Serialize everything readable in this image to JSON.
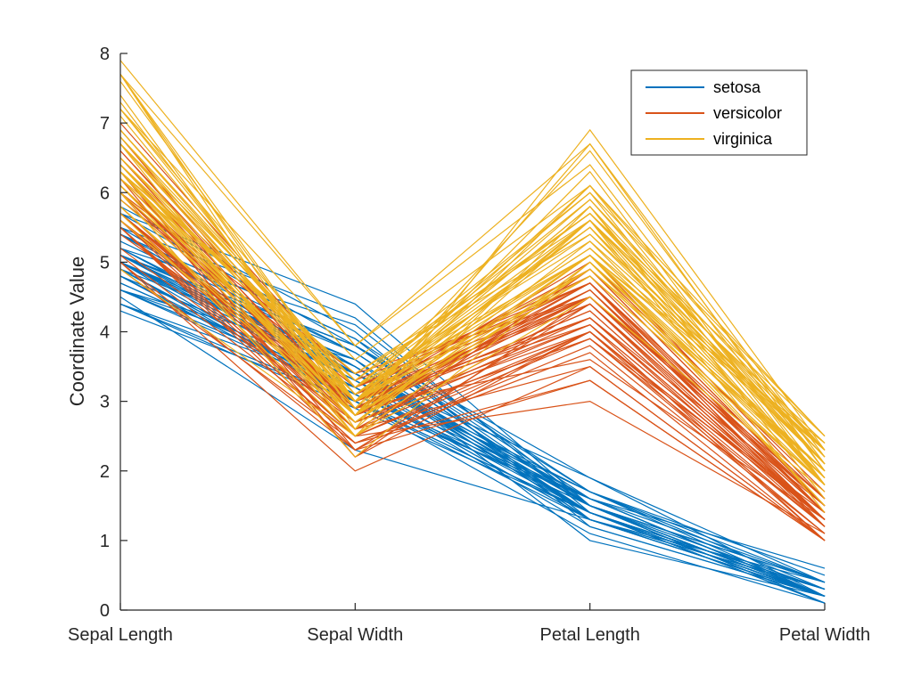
{
  "chart_data": {
    "type": "line",
    "title": "",
    "xlabel": "",
    "ylabel": "Coordinate Value",
    "categories": [
      "Sepal Length",
      "Sepal Width",
      "Petal Length",
      "Petal Width"
    ],
    "ylim": [
      0,
      8
    ],
    "yticks": [
      "0",
      "1",
      "2",
      "3",
      "4",
      "5",
      "6",
      "7",
      "8"
    ],
    "grid": false,
    "legend_position": "top-right",
    "legend": [
      "setosa",
      "versicolor",
      "virginica"
    ],
    "colors": {
      "setosa": "#0072BD",
      "versicolor": "#D95319",
      "virginica": "#EDB120"
    },
    "series": [
      {
        "name": "setosa",
        "lines": [
          [
            5.1,
            3.5,
            1.4,
            0.2
          ],
          [
            4.9,
            3.0,
            1.4,
            0.2
          ],
          [
            4.7,
            3.2,
            1.3,
            0.2
          ],
          [
            4.6,
            3.1,
            1.5,
            0.2
          ],
          [
            5.0,
            3.6,
            1.4,
            0.2
          ],
          [
            5.4,
            3.9,
            1.7,
            0.4
          ],
          [
            4.6,
            3.4,
            1.4,
            0.3
          ],
          [
            5.0,
            3.4,
            1.5,
            0.2
          ],
          [
            4.4,
            2.9,
            1.4,
            0.2
          ],
          [
            4.9,
            3.1,
            1.5,
            0.1
          ],
          [
            5.4,
            3.7,
            1.5,
            0.2
          ],
          [
            4.8,
            3.4,
            1.6,
            0.2
          ],
          [
            4.8,
            3.0,
            1.4,
            0.1
          ],
          [
            4.3,
            3.0,
            1.1,
            0.1
          ],
          [
            5.8,
            4.0,
            1.2,
            0.2
          ],
          [
            5.7,
            4.4,
            1.5,
            0.4
          ],
          [
            5.4,
            3.9,
            1.3,
            0.4
          ],
          [
            5.1,
            3.5,
            1.4,
            0.3
          ],
          [
            5.7,
            3.8,
            1.7,
            0.3
          ],
          [
            5.1,
            3.8,
            1.5,
            0.3
          ],
          [
            5.4,
            3.4,
            1.7,
            0.2
          ],
          [
            5.1,
            3.7,
            1.5,
            0.4
          ],
          [
            4.6,
            3.6,
            1.0,
            0.2
          ],
          [
            5.1,
            3.3,
            1.7,
            0.5
          ],
          [
            4.8,
            3.4,
            1.9,
            0.2
          ],
          [
            5.0,
            3.0,
            1.6,
            0.2
          ],
          [
            5.0,
            3.4,
            1.6,
            0.4
          ],
          [
            5.2,
            3.5,
            1.5,
            0.2
          ],
          [
            5.2,
            3.4,
            1.4,
            0.2
          ],
          [
            4.7,
            3.2,
            1.6,
            0.2
          ],
          [
            4.8,
            3.1,
            1.6,
            0.2
          ],
          [
            5.4,
            3.4,
            1.5,
            0.4
          ],
          [
            5.2,
            4.1,
            1.5,
            0.1
          ],
          [
            5.5,
            4.2,
            1.4,
            0.2
          ],
          [
            4.9,
            3.1,
            1.5,
            0.2
          ],
          [
            5.0,
            3.2,
            1.2,
            0.2
          ],
          [
            5.5,
            3.5,
            1.3,
            0.2
          ],
          [
            4.9,
            3.6,
            1.4,
            0.1
          ],
          [
            4.4,
            3.0,
            1.3,
            0.2
          ],
          [
            5.1,
            3.4,
            1.5,
            0.2
          ],
          [
            5.0,
            3.5,
            1.3,
            0.3
          ],
          [
            4.5,
            2.3,
            1.3,
            0.3
          ],
          [
            4.4,
            3.2,
            1.3,
            0.2
          ],
          [
            5.0,
            3.5,
            1.6,
            0.6
          ],
          [
            5.1,
            3.8,
            1.9,
            0.4
          ],
          [
            4.8,
            3.0,
            1.4,
            0.3
          ],
          [
            5.1,
            3.8,
            1.6,
            0.2
          ],
          [
            4.6,
            3.2,
            1.4,
            0.2
          ],
          [
            5.3,
            3.7,
            1.5,
            0.2
          ],
          [
            5.0,
            3.3,
            1.4,
            0.2
          ]
        ]
      },
      {
        "name": "versicolor",
        "lines": [
          [
            7.0,
            3.2,
            4.7,
            1.4
          ],
          [
            6.4,
            3.2,
            4.5,
            1.5
          ],
          [
            6.9,
            3.1,
            4.9,
            1.5
          ],
          [
            5.5,
            2.3,
            4.0,
            1.3
          ],
          [
            6.5,
            2.8,
            4.6,
            1.5
          ],
          [
            5.7,
            2.8,
            4.5,
            1.3
          ],
          [
            6.3,
            3.3,
            4.7,
            1.6
          ],
          [
            4.9,
            2.4,
            3.3,
            1.0
          ],
          [
            6.6,
            2.9,
            4.6,
            1.3
          ],
          [
            5.2,
            2.7,
            3.9,
            1.4
          ],
          [
            5.0,
            2.0,
            3.5,
            1.0
          ],
          [
            5.9,
            3.0,
            4.2,
            1.5
          ],
          [
            6.0,
            2.2,
            4.0,
            1.0
          ],
          [
            6.1,
            2.9,
            4.7,
            1.4
          ],
          [
            5.6,
            2.9,
            3.6,
            1.3
          ],
          [
            6.7,
            3.1,
            4.4,
            1.4
          ],
          [
            5.6,
            3.0,
            4.5,
            1.5
          ],
          [
            5.8,
            2.7,
            4.1,
            1.0
          ],
          [
            6.2,
            2.2,
            4.5,
            1.5
          ],
          [
            5.6,
            2.5,
            3.9,
            1.1
          ],
          [
            5.9,
            3.2,
            4.8,
            1.8
          ],
          [
            6.1,
            2.8,
            4.0,
            1.3
          ],
          [
            6.3,
            2.5,
            4.9,
            1.5
          ],
          [
            6.1,
            2.8,
            4.7,
            1.2
          ],
          [
            6.4,
            2.9,
            4.3,
            1.3
          ],
          [
            6.6,
            3.0,
            4.4,
            1.4
          ],
          [
            6.8,
            2.8,
            4.8,
            1.4
          ],
          [
            6.7,
            3.0,
            5.0,
            1.7
          ],
          [
            6.0,
            2.9,
            4.5,
            1.5
          ],
          [
            5.7,
            2.6,
            3.5,
            1.0
          ],
          [
            5.5,
            2.4,
            3.8,
            1.1
          ],
          [
            5.5,
            2.4,
            3.7,
            1.0
          ],
          [
            5.8,
            2.7,
            3.9,
            1.2
          ],
          [
            6.0,
            2.7,
            5.1,
            1.6
          ],
          [
            5.4,
            3.0,
            4.5,
            1.5
          ],
          [
            6.0,
            3.4,
            4.5,
            1.6
          ],
          [
            6.7,
            3.1,
            4.7,
            1.5
          ],
          [
            6.3,
            2.3,
            4.4,
            1.3
          ],
          [
            5.6,
            3.0,
            4.1,
            1.3
          ],
          [
            5.5,
            2.5,
            4.0,
            1.3
          ],
          [
            5.5,
            2.6,
            4.4,
            1.2
          ],
          [
            6.1,
            3.0,
            4.6,
            1.4
          ],
          [
            5.8,
            2.6,
            4.0,
            1.2
          ],
          [
            5.0,
            2.3,
            3.3,
            1.0
          ],
          [
            5.6,
            2.7,
            4.2,
            1.3
          ],
          [
            5.7,
            3.0,
            4.2,
            1.2
          ],
          [
            5.7,
            2.9,
            4.2,
            1.3
          ],
          [
            6.2,
            2.9,
            4.3,
            1.3
          ],
          [
            5.1,
            2.5,
            3.0,
            1.1
          ],
          [
            5.7,
            2.8,
            4.1,
            1.3
          ]
        ]
      },
      {
        "name": "virginica",
        "lines": [
          [
            6.3,
            3.3,
            6.0,
            2.5
          ],
          [
            5.8,
            2.7,
            5.1,
            1.9
          ],
          [
            7.1,
            3.0,
            5.9,
            2.1
          ],
          [
            6.3,
            2.9,
            5.6,
            1.8
          ],
          [
            6.5,
            3.0,
            5.8,
            2.2
          ],
          [
            7.6,
            3.0,
            6.6,
            2.1
          ],
          [
            4.9,
            2.5,
            4.5,
            1.7
          ],
          [
            7.3,
            2.9,
            6.3,
            1.8
          ],
          [
            6.7,
            2.5,
            5.8,
            1.8
          ],
          [
            7.2,
            3.6,
            6.1,
            2.5
          ],
          [
            6.5,
            3.2,
            5.1,
            2.0
          ],
          [
            6.4,
            2.7,
            5.3,
            1.9
          ],
          [
            6.8,
            3.0,
            5.5,
            2.1
          ],
          [
            5.7,
            2.5,
            5.0,
            2.0
          ],
          [
            5.8,
            2.8,
            5.1,
            2.4
          ],
          [
            6.4,
            3.2,
            5.3,
            2.3
          ],
          [
            6.5,
            3.0,
            5.5,
            1.8
          ],
          [
            7.7,
            3.8,
            6.7,
            2.2
          ],
          [
            7.7,
            2.6,
            6.9,
            2.3
          ],
          [
            6.0,
            2.2,
            5.0,
            1.5
          ],
          [
            6.9,
            3.2,
            5.7,
            2.3
          ],
          [
            5.6,
            2.8,
            4.9,
            2.0
          ],
          [
            7.7,
            2.8,
            6.7,
            2.0
          ],
          [
            6.3,
            2.7,
            4.9,
            1.8
          ],
          [
            6.7,
            3.3,
            5.7,
            2.1
          ],
          [
            7.2,
            3.2,
            6.0,
            1.8
          ],
          [
            6.2,
            2.8,
            4.8,
            1.8
          ],
          [
            6.1,
            3.0,
            4.9,
            1.8
          ],
          [
            6.4,
            2.8,
            5.6,
            2.1
          ],
          [
            7.2,
            3.0,
            5.8,
            1.6
          ],
          [
            7.4,
            2.8,
            6.1,
            1.9
          ],
          [
            7.9,
            3.8,
            6.4,
            2.0
          ],
          [
            6.4,
            2.8,
            5.6,
            2.2
          ],
          [
            6.3,
            2.8,
            5.1,
            1.5
          ],
          [
            6.1,
            2.6,
            5.6,
            1.4
          ],
          [
            7.7,
            3.0,
            6.1,
            2.3
          ],
          [
            6.3,
            3.4,
            5.6,
            2.4
          ],
          [
            6.4,
            3.1,
            5.5,
            1.8
          ],
          [
            6.0,
            3.0,
            4.8,
            1.8
          ],
          [
            6.9,
            3.1,
            5.4,
            2.1
          ],
          [
            6.7,
            3.1,
            5.6,
            2.4
          ],
          [
            6.9,
            3.1,
            5.1,
            2.3
          ],
          [
            5.8,
            2.7,
            5.1,
            1.9
          ],
          [
            6.8,
            3.2,
            5.9,
            2.3
          ],
          [
            6.7,
            3.3,
            5.7,
            2.5
          ],
          [
            6.7,
            3.0,
            5.2,
            2.3
          ],
          [
            6.3,
            2.5,
            5.0,
            1.9
          ],
          [
            6.5,
            3.0,
            5.2,
            2.0
          ],
          [
            6.2,
            3.4,
            5.4,
            2.3
          ],
          [
            5.9,
            3.0,
            5.1,
            1.8
          ]
        ]
      }
    ]
  }
}
